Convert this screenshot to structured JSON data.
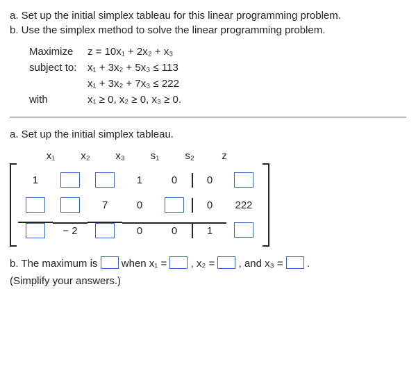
{
  "problem": {
    "part_a_text": "a. Set up the initial simplex tableau for this linear programming problem.",
    "part_b_text": "b. Use the simplex method to solve the linear programming problem."
  },
  "lp": {
    "maximize_label": "Maximize",
    "objective": "z = 10x₁ + 2x₂ + x₃",
    "subject_label": "subject to:",
    "constraint1": "x₁ + 3x₂ + 5x₃ ≤ 113",
    "constraint2": "x₁ + 3x₂ + 7x₃ ≤ 222",
    "with_label": "with",
    "nonneg": "x₁ ≥ 0, x₂ ≥ 0, x₃ ≥ 0."
  },
  "section_a": {
    "title": "a. Set up the initial simplex tableau."
  },
  "tableau": {
    "headers": {
      "c1": "x₁",
      "c2": "x₂",
      "c3": "x₃",
      "c4": "s₁",
      "c5": "s₂",
      "c6": "z",
      "c7": ""
    },
    "row1": {
      "c1": "1",
      "c4": "1",
      "c5": "0",
      "c6": "0"
    },
    "row2": {
      "c3": "7",
      "c4": "0",
      "c6": "0",
      "c7": "222"
    },
    "row3": {
      "c2": "− 2",
      "c4": "0",
      "c5": "0",
      "c6": "1"
    }
  },
  "part_b": {
    "prefix": "b. The maximum is ",
    "when": " when x₁ = ",
    "x2": ", x₂ = ",
    "x3": ", and x₃ = ",
    "period": ".",
    "simplify": "(Simplify your answers.)"
  }
}
